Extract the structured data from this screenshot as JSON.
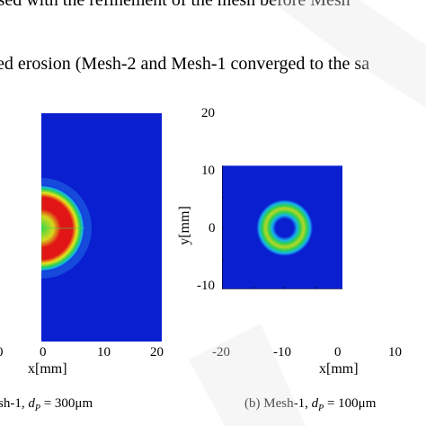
{
  "text": {
    "line1": "ised with the refinement of the mesh before Mesh",
    "line2": "ed erosion (Mesh-2 and Mesh-1 converged to the sa"
  },
  "left_plot": {
    "x_ticks": [
      "0",
      "0",
      "10",
      "20"
    ],
    "xlabel": "x[mm]",
    "caption_prefix": "sh-1, ",
    "caption_var": "d",
    "caption_sub": "P",
    "caption_value": " = 300μm"
  },
  "right_plot": {
    "y_ticks": [
      "20",
      "10",
      "0",
      "-10"
    ],
    "x_ticks": [
      "-20",
      "-10",
      "0",
      "10"
    ],
    "ylabel": "y[mm]",
    "xlabel": "x[mm]",
    "caption_prefix": "(b) Mesh-1, ",
    "caption_var": "d",
    "caption_sub": "P",
    "caption_value": " = 100μm"
  },
  "colors": {
    "background_blue": "#0a1fd0",
    "cyan": "#16b4ee",
    "green": "#2ccf55",
    "yellow": "#e8e61a",
    "red": "#e21516"
  }
}
